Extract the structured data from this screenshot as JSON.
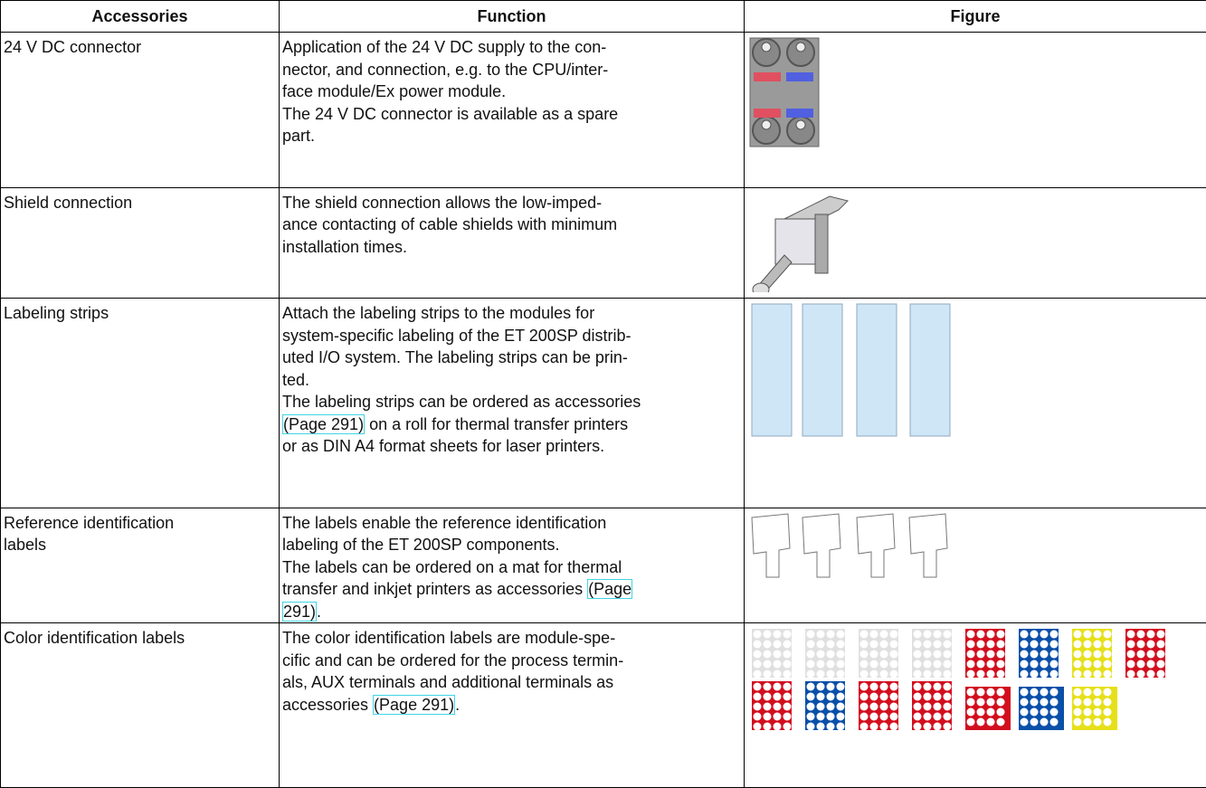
{
  "table": {
    "headers": [
      "Accessories",
      "Function",
      "Figure"
    ],
    "rows": [
      {
        "accessory": [
          "24 V DC connector"
        ],
        "function": [
          "Application of the 24 V DC supply to the con-",
          "nector, and connection, e.g. to the CPU/inter-",
          "face module/Ex power module.",
          "The 24 V DC connector is available as a spare",
          "part."
        ]
      },
      {
        "accessory": [
          "Shield connection"
        ],
        "function": [
          "The shield connection allows the low-imped-",
          "ance contacting of cable shields with minimum",
          "installation times."
        ]
      },
      {
        "accessory": [
          "Labeling strips"
        ],
        "function": [
          "Attach the labeling strips to the modules for",
          "system-specific labeling of the ET 200SP distrib-",
          "uted I/O system. The labeling strips can be prin-",
          "ted.",
          "The labeling strips can be ordered as accessories",
          [
            {
              "link": "(Page 291)"
            },
            " on a roll for thermal transfer printers"
          ],
          "or as DIN A4 format sheets for laser printers."
        ]
      },
      {
        "accessory": [
          "Reference identification",
          "labels"
        ],
        "function": [
          "The labels enable the reference identification",
          "labeling of the ET 200SP components.",
          "The labels can be ordered on a mat for thermal",
          [
            "transfer and inkjet printers as accessories ",
            {
              "link": "(Page"
            }
          ],
          [
            {
              "link": "291)"
            },
            "."
          ]
        ]
      },
      {
        "accessory": [
          "Color identification labels"
        ],
        "function": [
          "The color identification labels are module-spe-",
          "cific and can be ordered for the process termin-",
          "als, AUX terminals and additional terminals as",
          [
            "accessories ",
            {
              "link": "(Page 291)"
            },
            "."
          ]
        ]
      }
    ]
  }
}
